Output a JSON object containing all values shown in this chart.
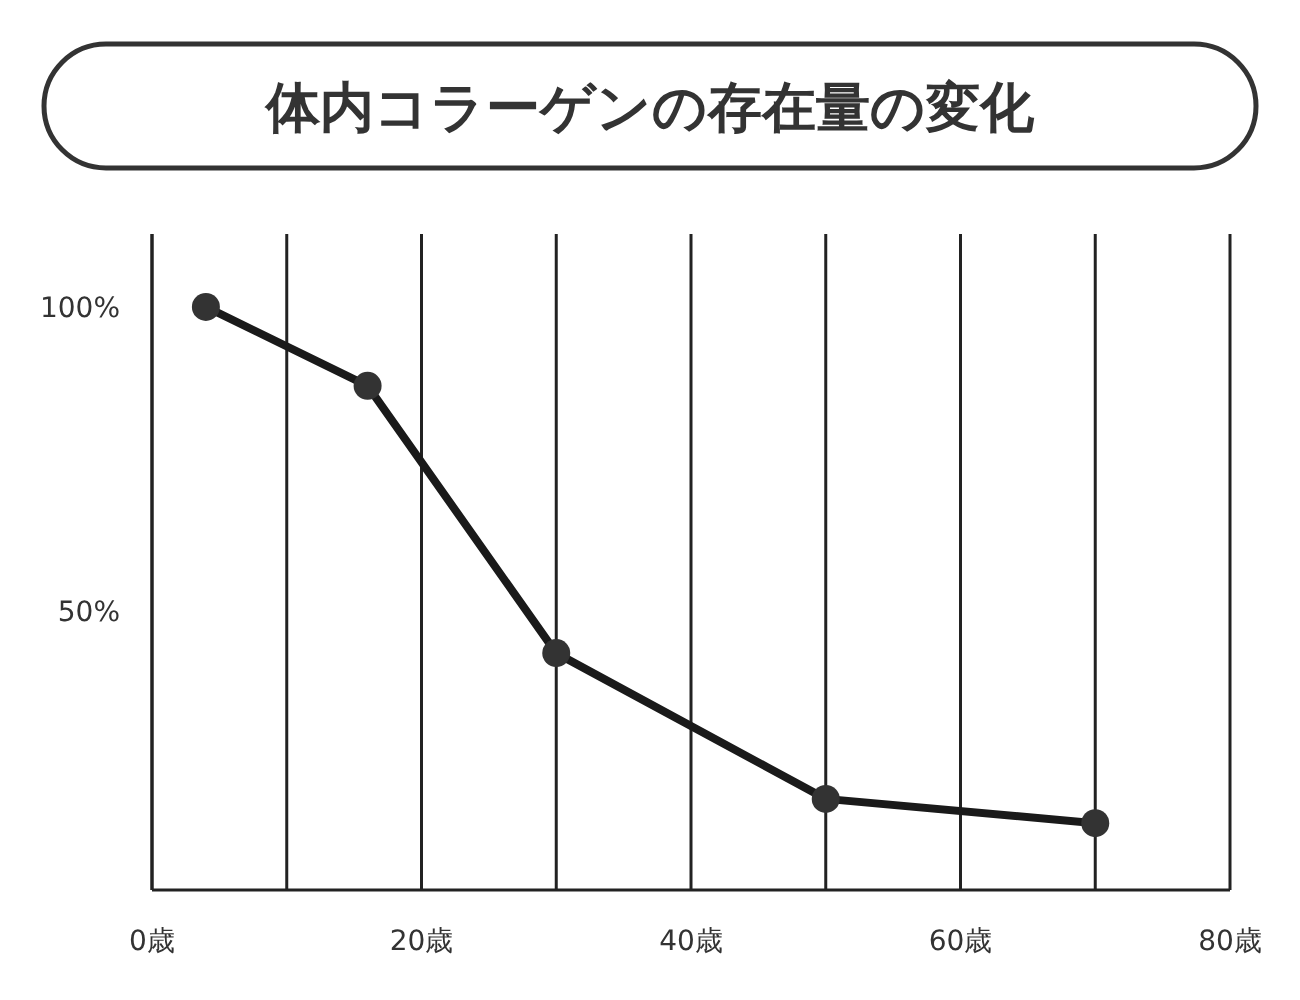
{
  "chart_data": {
    "type": "line",
    "title": "体内コラーゲンの存在量の変化",
    "x": [
      4,
      16,
      30,
      50,
      70
    ],
    "series": [
      {
        "color": "#1a1a1a",
        "values": [
          100,
          87,
          43,
          19,
          15
        ]
      }
    ],
    "xlim": [
      0,
      80
    ],
    "xticks": [
      {
        "value": 0,
        "label": "0歳"
      },
      {
        "value": 10,
        "label": null
      },
      {
        "value": 20,
        "label": "20歳"
      },
      {
        "value": 30,
        "label": null
      },
      {
        "value": 40,
        "label": "40歳"
      },
      {
        "value": 50,
        "label": null
      },
      {
        "value": 60,
        "label": "60歳"
      },
      {
        "value": 70,
        "label": null
      },
      {
        "value": 80,
        "label": "80歳"
      }
    ],
    "ylim": [
      4,
      112
    ],
    "yticks": [
      {
        "value": 50,
        "label": "50%"
      },
      {
        "value": 100,
        "label": "100%"
      }
    ],
    "grid": "x",
    "marker": "circle",
    "line_style": "solid"
  }
}
